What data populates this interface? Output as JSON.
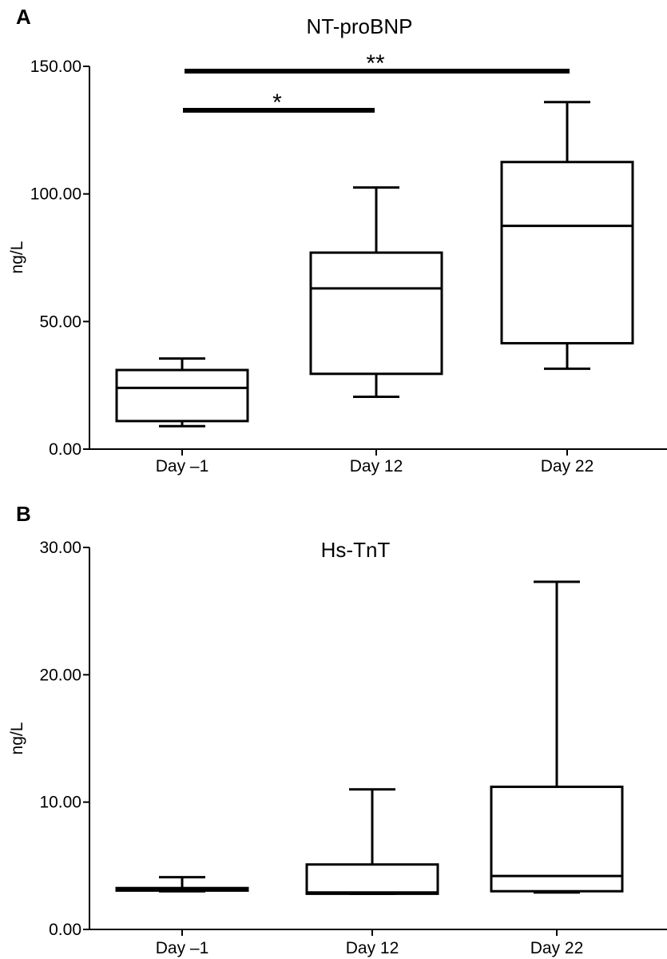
{
  "chart_data": [
    {
      "type": "box",
      "panel": "A",
      "title": "NT-proBNP",
      "ylabel": "ng/L",
      "ylim": [
        0,
        150
      ],
      "yticks": [
        "0.00",
        "50.00",
        "100.00",
        "150.00"
      ],
      "ytick_values": [
        0,
        50,
        100,
        150
      ],
      "categories": [
        "Day –1",
        "Day 12",
        "Day 22"
      ],
      "boxes": [
        {
          "min": 9,
          "q1": 11,
          "median": 24,
          "q3": 31,
          "max": 35.5
        },
        {
          "min": 20.5,
          "q1": 29.5,
          "median": 63,
          "q3": 77,
          "max": 102.5
        },
        {
          "min": 31.5,
          "q1": 41.5,
          "median": 87.5,
          "q3": 112.5,
          "max": 136
        }
      ],
      "significance": [
        {
          "from": 0,
          "to": 1,
          "level": 132.5,
          "label": "*"
        },
        {
          "from": 0,
          "to": 2,
          "level": 148,
          "label": "**"
        }
      ]
    },
    {
      "type": "box",
      "panel": "B",
      "title": "Hs-TnT",
      "ylabel": "ng/L",
      "ylim": [
        0,
        30
      ],
      "yticks": [
        "0.00",
        "10.00",
        "20.00",
        "30.00"
      ],
      "ytick_values": [
        0,
        10,
        20,
        30
      ],
      "categories": [
        "Day –1",
        "Day 12",
        "Day 22"
      ],
      "boxes": [
        {
          "min": 3.0,
          "q1": 3.05,
          "median": 3.15,
          "q3": 3.25,
          "max": 4.1
        },
        {
          "min": 2.8,
          "q1": 2.8,
          "median": 2.9,
          "q3": 5.1,
          "max": 11.0
        },
        {
          "min": 2.9,
          "q1": 3.0,
          "median": 4.2,
          "q3": 11.2,
          "max": 27.3
        }
      ],
      "significance": []
    }
  ]
}
